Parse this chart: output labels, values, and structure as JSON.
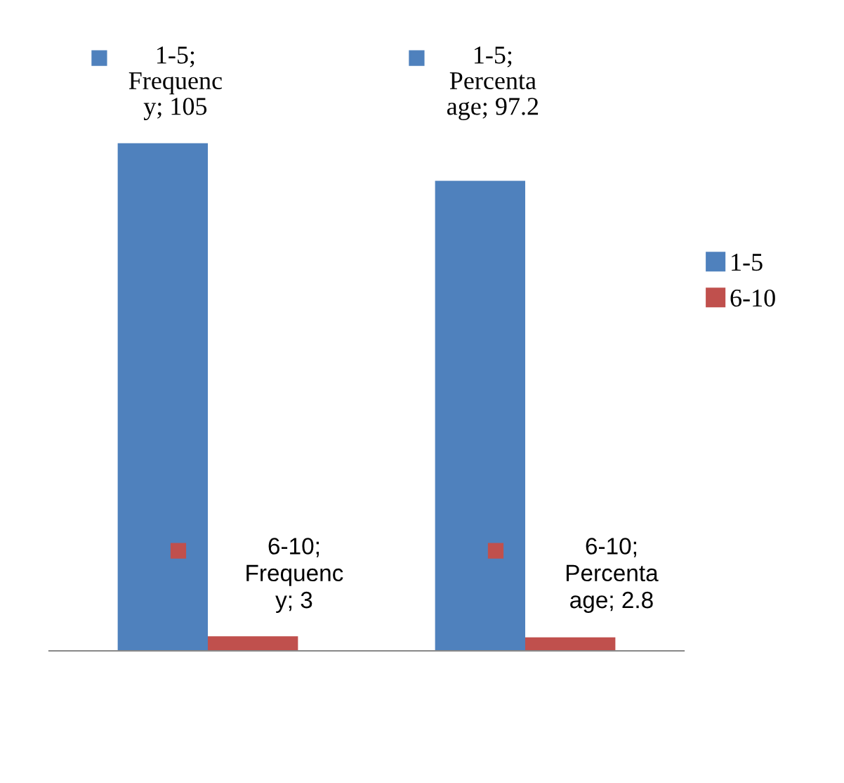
{
  "chart_data": {
    "type": "bar",
    "categories": [
      null,
      null
    ],
    "series": [
      {
        "name": "1-5",
        "color": "#4f81bd",
        "values": [
          105,
          97.2
        ],
        "value_labels": [
          "1-5;\nFrequenc\ny; 105",
          "1-5;\nPercenta\nage; 97.2"
        ]
      },
      {
        "name": "6-10",
        "color": "#c0504d",
        "values": [
          3,
          2.8
        ],
        "value_labels": [
          "6-10;\nFrequenc\ny; 3",
          "6-10;\nPercenta\nage; 2.8"
        ]
      }
    ],
    "grid": false,
    "legend": "right"
  }
}
